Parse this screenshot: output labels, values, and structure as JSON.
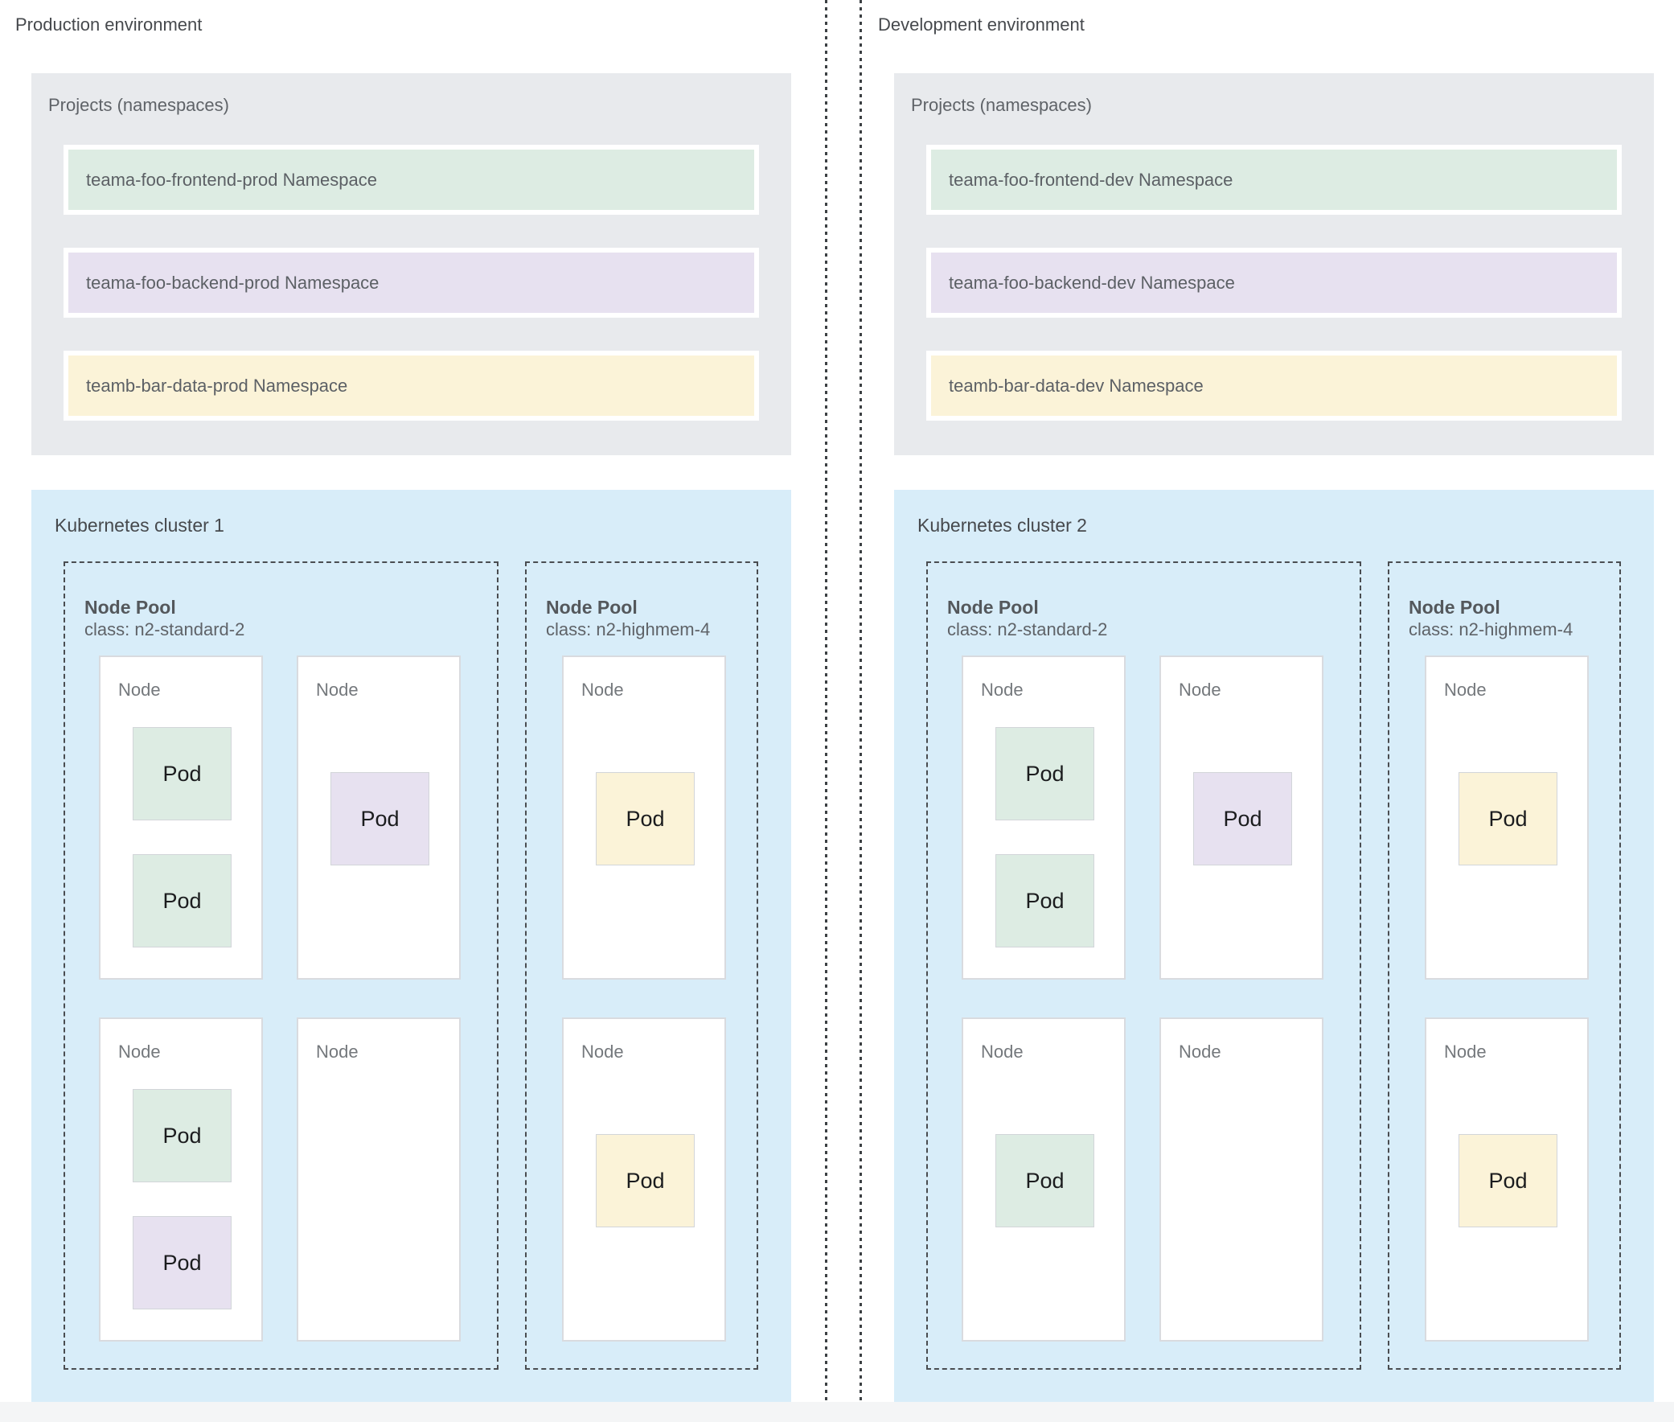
{
  "colors": {
    "page_background": "#ffffff",
    "projects_box": "#e8eaed",
    "cluster_box": "#d8edf9",
    "green": "#ddece3",
    "purple": "#e7e1f0",
    "yellow": "#fbf3d8",
    "node_fill": "#ffffff",
    "dashed_border": "#4a4d51",
    "divider": "#3c4043",
    "bottom_strip": "#f4f5f6",
    "title_text": "#46494d",
    "label_text": "#5f6368",
    "pod_text": "#1b1c1e"
  },
  "environments": [
    {
      "label": "Production environment",
      "projects": {
        "title": "Projects (namespaces)",
        "namespaces": [
          {
            "label": "teama-foo-frontend-prod Namespace",
            "color": "green"
          },
          {
            "label": "teama-foo-backend-prod Namespace",
            "color": "purple"
          },
          {
            "label": "teamb-bar-data-prod Namespace",
            "color": "yellow"
          }
        ]
      },
      "cluster": {
        "title": "Kubernetes cluster 1",
        "node_pools": [
          {
            "title": "Node Pool",
            "class_label": "class: n2-standard-2",
            "nodes": [
              {
                "label": "Node",
                "pods": [
                  {
                    "label": "Pod",
                    "color": "green"
                  },
                  {
                    "label": "Pod",
                    "color": "green"
                  }
                ]
              },
              {
                "label": "Node",
                "pods": [
                  {
                    "label": "Pod",
                    "color": "purple"
                  }
                ]
              },
              {
                "label": "Node",
                "pods": [
                  {
                    "label": "Pod",
                    "color": "green"
                  },
                  {
                    "label": "Pod",
                    "color": "purple"
                  }
                ]
              },
              {
                "label": "Node",
                "pods": []
              }
            ]
          },
          {
            "title": "Node Pool",
            "class_label": "class: n2-highmem-4",
            "nodes": [
              {
                "label": "Node",
                "pods": [
                  {
                    "label": "Pod",
                    "color": "yellow"
                  }
                ]
              },
              {
                "label": "Node",
                "pods": [
                  {
                    "label": "Pod",
                    "color": "yellow"
                  }
                ]
              }
            ]
          }
        ]
      }
    },
    {
      "label": "Development environment",
      "projects": {
        "title": "Projects (namespaces)",
        "namespaces": [
          {
            "label": "teama-foo-frontend-dev Namespace",
            "color": "green"
          },
          {
            "label": "teama-foo-backend-dev Namespace",
            "color": "purple"
          },
          {
            "label": "teamb-bar-data-dev Namespace",
            "color": "yellow"
          }
        ]
      },
      "cluster": {
        "title": "Kubernetes cluster 2",
        "node_pools": [
          {
            "title": "Node Pool",
            "class_label": "class: n2-standard-2",
            "nodes": [
              {
                "label": "Node",
                "pods": [
                  {
                    "label": "Pod",
                    "color": "green"
                  },
                  {
                    "label": "Pod",
                    "color": "green"
                  }
                ]
              },
              {
                "label": "Node",
                "pods": [
                  {
                    "label": "Pod",
                    "color": "purple"
                  }
                ]
              },
              {
                "label": "Node",
                "pods": [
                  {
                    "label": "Pod",
                    "color": "green"
                  }
                ]
              },
              {
                "label": "Node",
                "pods": []
              }
            ]
          },
          {
            "title": "Node Pool",
            "class_label": "class: n2-highmem-4",
            "nodes": [
              {
                "label": "Node",
                "pods": [
                  {
                    "label": "Pod",
                    "color": "yellow"
                  }
                ]
              },
              {
                "label": "Node",
                "pods": [
                  {
                    "label": "Pod",
                    "color": "yellow"
                  }
                ]
              }
            ]
          }
        ]
      }
    }
  ]
}
